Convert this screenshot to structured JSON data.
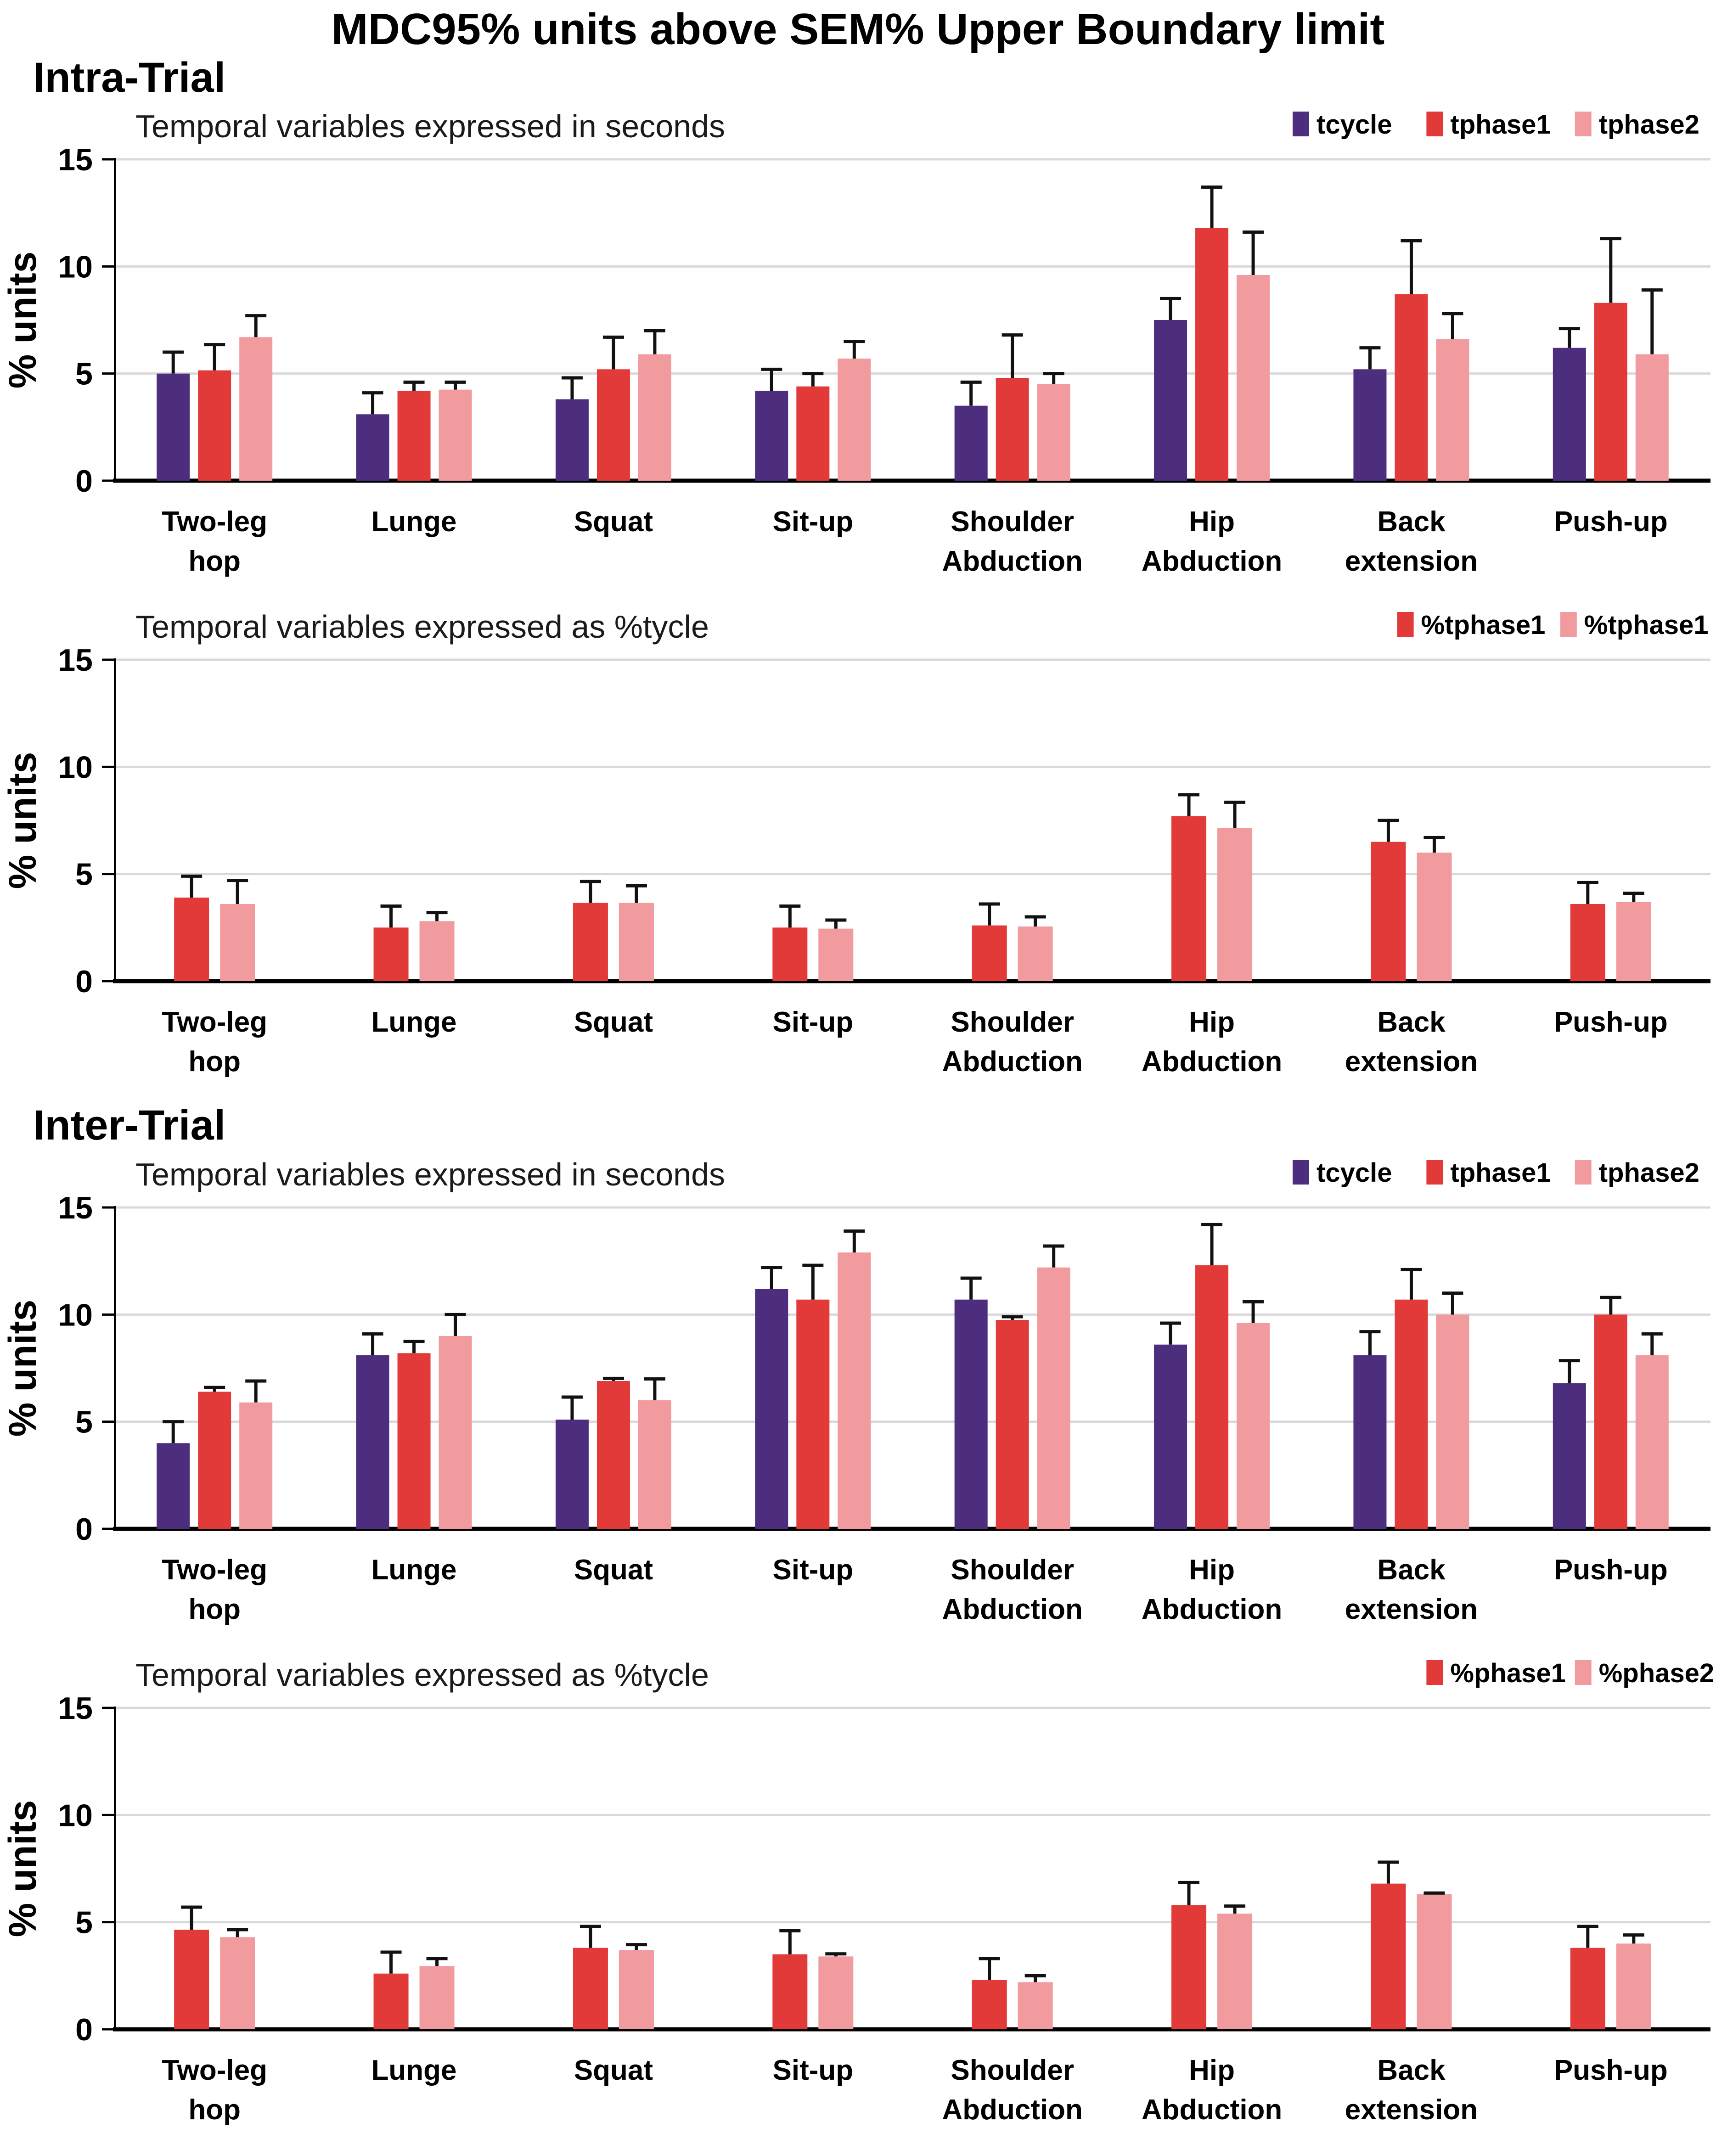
{
  "title": "MDC95% units above SEM% Upper Boundary limit",
  "sections": [
    {
      "label": "Intra-Trial"
    },
    {
      "label": "Inter-Trial"
    }
  ],
  "colors": {
    "purple": "#4C2D7E",
    "red": "#E23939",
    "pink": "#F29B9F",
    "gridline": "#D9D9D9",
    "axis": "#000000",
    "error_bar": "#111111",
    "title_text": "#1A1A1A"
  },
  "chart_data": [
    {
      "type": "bar",
      "section": "Intra-Trial",
      "title": "Temporal variables expressed in seconds",
      "ylabel": "% units",
      "ylim": [
        0,
        15
      ],
      "yticks": [
        0,
        5,
        10,
        15
      ],
      "grid": true,
      "legend_position": "top-right",
      "categories": [
        "Two-leg hop",
        "Lunge",
        "Squat",
        "Sit-up",
        "Shoulder Abduction",
        "Hip Abduction",
        "Back extension",
        "Push-up"
      ],
      "categories_lines": [
        [
          "Two-leg",
          "hop"
        ],
        [
          "Lunge"
        ],
        [
          "Squat"
        ],
        [
          "Sit-up"
        ],
        [
          "Shoulder",
          "Abduction"
        ],
        [
          "Hip",
          "Abduction"
        ],
        [
          "Back",
          "extension"
        ],
        [
          "Push-up"
        ]
      ],
      "series": [
        {
          "name": "tcycle",
          "color": "#4C2D7E",
          "values": [
            5.0,
            3.1,
            3.8,
            4.2,
            3.5,
            7.5,
            5.2,
            6.2
          ],
          "errors": [
            1.0,
            1.0,
            1.0,
            1.0,
            1.1,
            1.0,
            1.0,
            0.9
          ]
        },
        {
          "name": "tphase1",
          "color": "#E23939",
          "values": [
            5.15,
            4.2,
            5.2,
            4.4,
            4.8,
            11.8,
            8.7,
            8.3
          ],
          "errors": [
            1.2,
            0.4,
            1.5,
            0.6,
            2.0,
            1.9,
            2.5,
            3.0
          ]
        },
        {
          "name": "tphase2",
          "color": "#F29B9F",
          "values": [
            6.7,
            4.25,
            5.9,
            5.7,
            4.5,
            9.6,
            6.6,
            5.9
          ],
          "errors": [
            1.0,
            0.35,
            1.1,
            0.8,
            0.5,
            2.0,
            1.2,
            3.0
          ]
        }
      ]
    },
    {
      "type": "bar",
      "section": "Intra-Trial",
      "title": "Temporal variables expressed as %tycle",
      "ylabel": "% units",
      "ylim": [
        0,
        15
      ],
      "yticks": [
        0,
        5,
        10,
        15
      ],
      "grid": true,
      "legend_position": "top-right",
      "categories": [
        "Two-leg hop",
        "Lunge",
        "Squat",
        "Sit-up",
        "Shoulder Abduction",
        "Hip Abduction",
        "Back extension",
        "Push-up"
      ],
      "categories_lines": [
        [
          "Two-leg",
          "hop"
        ],
        [
          "Lunge"
        ],
        [
          "Squat"
        ],
        [
          "Sit-up"
        ],
        [
          "Shoulder",
          "Abduction"
        ],
        [
          "Hip",
          "Abduction"
        ],
        [
          "Back",
          "extension"
        ],
        [
          "Push-up"
        ]
      ],
      "series": [
        {
          "name": "%tphase1",
          "color": "#E23939",
          "values": [
            3.9,
            2.5,
            3.65,
            2.5,
            2.6,
            7.7,
            6.5,
            3.6
          ],
          "errors": [
            1.0,
            1.0,
            1.0,
            1.0,
            1.0,
            1.0,
            1.0,
            1.0
          ]
        },
        {
          "name": "%tphase1",
          "color": "#F29B9F",
          "values": [
            3.6,
            2.8,
            3.65,
            2.45,
            2.55,
            7.15,
            6.0,
            3.7
          ],
          "errors": [
            1.1,
            0.4,
            0.8,
            0.4,
            0.45,
            1.2,
            0.7,
            0.4
          ]
        }
      ]
    },
    {
      "type": "bar",
      "section": "Inter-Trial",
      "title": "Temporal variables expressed in seconds",
      "ylabel": "% units",
      "ylim": [
        0,
        15
      ],
      "yticks": [
        0,
        5,
        10,
        15
      ],
      "grid": true,
      "legend_position": "top-right",
      "categories": [
        "Two-leg hop",
        "Lunge",
        "Squat",
        "Sit-up",
        "Shoulder Abduction",
        "Hip Abduction",
        "Back extension",
        "Push-up"
      ],
      "categories_lines": [
        [
          "Two-leg",
          "hop"
        ],
        [
          "Lunge"
        ],
        [
          "Squat"
        ],
        [
          "Sit-up"
        ],
        [
          "Shoulder",
          "Abduction"
        ],
        [
          "Hip",
          "Abduction"
        ],
        [
          "Back",
          "extension"
        ],
        [
          "Push-up"
        ]
      ],
      "series": [
        {
          "name": "tcycle",
          "color": "#4C2D7E",
          "values": [
            4.0,
            8.1,
            5.1,
            11.2,
            10.7,
            8.6,
            8.1,
            6.8
          ],
          "errors": [
            1.0,
            1.0,
            1.05,
            1.0,
            1.0,
            1.0,
            1.1,
            1.05
          ]
        },
        {
          "name": "tphase1",
          "color": "#E23939",
          "values": [
            6.4,
            8.2,
            6.9,
            10.7,
            9.75,
            12.3,
            10.7,
            10.0
          ],
          "errors": [
            0.2,
            0.55,
            0.12,
            1.6,
            0.15,
            1.9,
            1.4,
            0.8
          ]
        },
        {
          "name": "tphase2",
          "color": "#F29B9F",
          "values": [
            5.9,
            9.0,
            6.0,
            12.9,
            12.2,
            9.6,
            10.0,
            8.1
          ],
          "errors": [
            1.0,
            1.0,
            1.0,
            1.0,
            1.0,
            1.0,
            1.0,
            1.0
          ]
        }
      ]
    },
    {
      "type": "bar",
      "section": "Inter-Trial",
      "title": "Temporal variables expressed as %tycle",
      "ylabel": "% units",
      "ylim": [
        0,
        15
      ],
      "yticks": [
        0,
        5,
        10,
        15
      ],
      "grid": true,
      "legend_position": "top-right",
      "categories": [
        "Two-leg hop",
        "Lunge",
        "Squat",
        "Sit-up",
        "Shoulder Abduction",
        "Hip Abduction",
        "Back extension",
        "Push-up"
      ],
      "categories_lines": [
        [
          "Two-leg",
          "hop"
        ],
        [
          "Lunge"
        ],
        [
          "Squat"
        ],
        [
          "Sit-up"
        ],
        [
          "Shoulder",
          "Abduction"
        ],
        [
          "Hip",
          "Abduction"
        ],
        [
          "Back",
          "extension"
        ],
        [
          "Push-up"
        ]
      ],
      "series": [
        {
          "name": "%phase1",
          "color": "#E23939",
          "values": [
            4.65,
            2.6,
            3.8,
            3.5,
            2.3,
            5.8,
            6.8,
            3.8
          ],
          "errors": [
            1.05,
            1.0,
            1.0,
            1.1,
            1.0,
            1.05,
            1.0,
            1.0
          ]
        },
        {
          "name": "%phase2",
          "color": "#F29B9F",
          "values": [
            4.3,
            2.95,
            3.7,
            3.4,
            2.2,
            5.4,
            6.3,
            4.0
          ],
          "errors": [
            0.35,
            0.35,
            0.25,
            0.12,
            0.3,
            0.35,
            0.06,
            0.4
          ]
        }
      ]
    }
  ]
}
